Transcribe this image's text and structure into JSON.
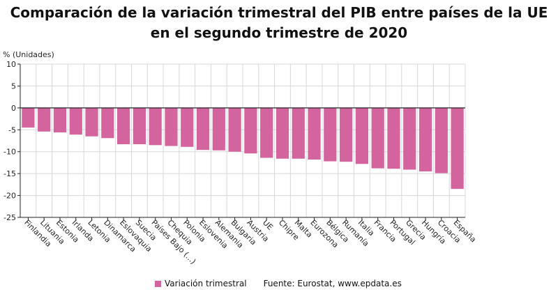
{
  "title_line1": "Comparación de la variación trimestral del PIB entre países de la UE",
  "title_line2": "en el segundo trimestre de 2020",
  "legend_label": "Variación trimestral",
  "source": "Fuente: Eurostat, www.epdata.es",
  "colors": {
    "bar": "#d4649d",
    "grid": "#d8d8d8",
    "axis": "#222222"
  },
  "chart_data": {
    "type": "bar",
    "ylabel": "% (Unidades)",
    "ylim": [
      -25,
      10
    ],
    "yticks": [
      10,
      5,
      0,
      -5,
      -10,
      -15,
      -20,
      -25
    ],
    "grid": true,
    "legend_position": "bottom",
    "categories": [
      "Finlandia",
      "Lituania",
      "Estonia",
      "Irlanda",
      "Letonia",
      "Dinamarca",
      "Eslovaquia",
      "Suecia",
      "Países Bajo (...)",
      "Chequia",
      "Polonia",
      "Eslovenia",
      "Alemania",
      "Bulgaria",
      "Austria",
      "UE",
      "Chipre",
      "Malta",
      "Eurozona",
      "Bélgica",
      "Rumanía",
      "Italia",
      "Francia",
      "Portugal",
      "Grecia",
      "Hungría",
      "Croacia",
      "España"
    ],
    "series": [
      {
        "name": "Variación trimestral",
        "values": [
          -4.5,
          -5.4,
          -5.6,
          -6.1,
          -6.5,
          -6.9,
          -8.3,
          -8.3,
          -8.5,
          -8.7,
          -8.9,
          -9.6,
          -9.7,
          -10.0,
          -10.4,
          -11.4,
          -11.6,
          -11.6,
          -11.8,
          -12.2,
          -12.3,
          -12.8,
          -13.8,
          -13.9,
          -14.1,
          -14.5,
          -14.9,
          -18.5
        ]
      }
    ]
  }
}
